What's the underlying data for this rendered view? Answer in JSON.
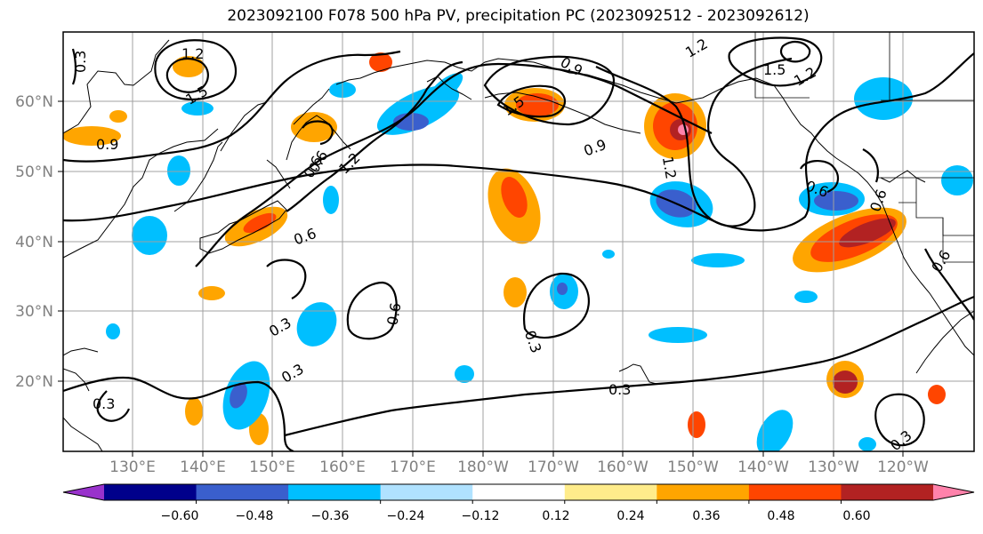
{
  "title": "2023092100 F078 500 hPa PV, precipitation PC (2023092512 - 2023092612)",
  "lat_labels": [
    "60°N",
    "50°N",
    "40°N",
    "30°N",
    "20°N"
  ],
  "lon_labels": [
    "130°E",
    "140°E",
    "150°E",
    "160°E",
    "170°E",
    "180°W",
    "170°W",
    "160°W",
    "150°W",
    "140°W",
    "130°W",
    "120°W"
  ],
  "colorbar": {
    "ticks": [
      "−0.60",
      "−0.48",
      "−0.36",
      "−0.24",
      "−0.12",
      "0.12",
      "0.24",
      "0.36",
      "0.48",
      "0.60"
    ],
    "colors": [
      "#9932cc",
      "#00008b",
      "#3a5fcd",
      "#00bfff",
      "#b0e2ff",
      "#ffffff",
      "#ffec8b",
      "#ffa500",
      "#ff4500",
      "#b22222",
      "#ff82ab"
    ]
  },
  "contour_labels": [
    "0.3",
    "1.2",
    "1.5",
    "0.9",
    "1.2",
    "1.5",
    "0.9",
    "0.6",
    "1.2",
    "0.6",
    "0.9",
    "1.5",
    "1.2",
    "0.6",
    "0.6",
    "0.3",
    "0.6",
    "0.3",
    "0.3",
    "0.3",
    "0.3",
    "0.6",
    "0.3",
    "0.6",
    "1.2"
  ]
}
